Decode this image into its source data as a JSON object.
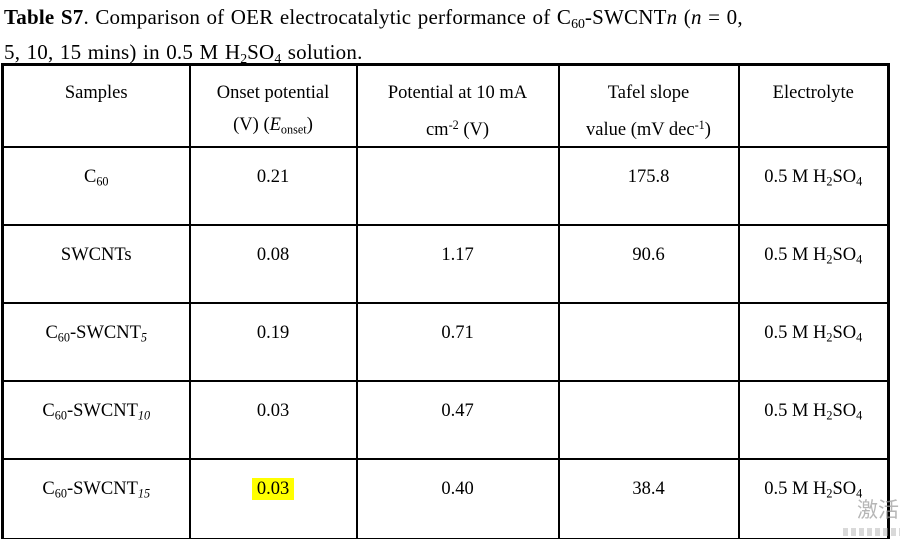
{
  "title": {
    "rich": [
      {
        "b": "Table S7"
      },
      {
        "t": ". Comparison of OER electrocatalytic performance of C"
      },
      {
        "sub": "60"
      },
      {
        "t": "-SWCNT"
      },
      {
        "i": "n"
      },
      {
        "t": " ("
      },
      {
        "i": "n"
      },
      {
        "t": " = 0,"
      },
      {
        "br": true
      },
      {
        "t": "5, 10, 15 mins) in 0.5 M H"
      },
      {
        "sub": "2"
      },
      {
        "t": "SO"
      },
      {
        "sub": "4"
      },
      {
        "t": " solution."
      }
    ]
  },
  "table": {
    "headers": [
      [
        {
          "t": "Samples"
        }
      ],
      [
        {
          "t": "Onset potential"
        },
        {
          "br": true
        },
        {
          "t": "(V) ("
        },
        {
          "i": "E"
        },
        {
          "sub": "onset"
        },
        {
          "t": ")"
        }
      ],
      [
        {
          "t": "Potential at 10 mA"
        },
        {
          "br": true
        },
        {
          "t": "cm"
        },
        {
          "sup": "-2"
        },
        {
          "t": " (V)"
        }
      ],
      [
        {
          "t": "Tafel slope"
        },
        {
          "br": true
        },
        {
          "t": "value (mV dec"
        },
        {
          "sup": "-1"
        },
        {
          "t": ")"
        }
      ],
      [
        {
          "t": "Electrolyte"
        }
      ]
    ],
    "rows": [
      [
        [
          {
            "t": "C"
          },
          {
            "sub": "60"
          }
        ],
        [
          {
            "t": "0.21"
          }
        ],
        [],
        [
          {
            "t": "175.8"
          }
        ],
        [
          {
            "t": "0.5 M H"
          },
          {
            "sub": "2"
          },
          {
            "t": "SO"
          },
          {
            "sub": "4"
          }
        ]
      ],
      [
        [
          {
            "t": "SWCNTs"
          }
        ],
        [
          {
            "t": "0.08"
          }
        ],
        [
          {
            "t": "1.17"
          }
        ],
        [
          {
            "t": "90.6"
          }
        ],
        [
          {
            "t": "0.5 M H"
          },
          {
            "sub": "2"
          },
          {
            "t": "SO"
          },
          {
            "sub": "4"
          }
        ]
      ],
      [
        [
          {
            "t": "C"
          },
          {
            "sub": "60"
          },
          {
            "t": "-SWCNT"
          },
          {
            "subi": "5"
          }
        ],
        [
          {
            "t": "0.19"
          }
        ],
        [
          {
            "t": "0.71"
          }
        ],
        [],
        [
          {
            "t": "0.5 M H"
          },
          {
            "sub": "2"
          },
          {
            "t": "SO"
          },
          {
            "sub": "4"
          }
        ]
      ],
      [
        [
          {
            "t": "C"
          },
          {
            "sub": "60"
          },
          {
            "t": "-SWCNT"
          },
          {
            "subi": "10"
          }
        ],
        [
          {
            "t": "0.03"
          }
        ],
        [
          {
            "t": "0.47"
          }
        ],
        [],
        [
          {
            "t": "0.5 M H"
          },
          {
            "sub": "2"
          },
          {
            "t": "SO"
          },
          {
            "sub": "4"
          }
        ]
      ],
      [
        [
          {
            "t": "C"
          },
          {
            "sub": "60"
          },
          {
            "t": "-SWCNT"
          },
          {
            "subi": "15"
          }
        ],
        [
          {
            "hl": "0.03"
          }
        ],
        [
          {
            "t": "0.40"
          }
        ],
        [
          {
            "t": "38.4"
          }
        ],
        [
          {
            "t": "0.5 M H"
          },
          {
            "sub": "2"
          },
          {
            "t": "SO"
          },
          {
            "sub": "4"
          }
        ]
      ]
    ]
  },
  "watermark": {
    "text": "激活"
  },
  "colors": {
    "highlight": "#ffff00",
    "border": "#000000",
    "watermark": "#9a9a9a",
    "background": "#ffffff"
  }
}
